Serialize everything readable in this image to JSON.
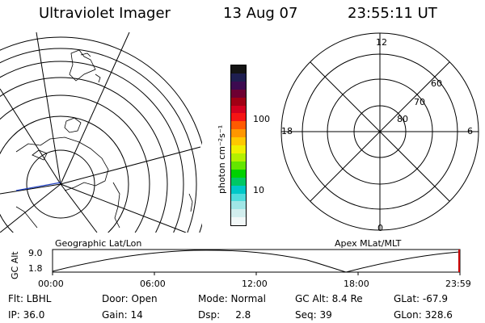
{
  "header": {
    "title": "Ultraviolet Imager",
    "date": "13 Aug 07",
    "time": "23:55:11 UT"
  },
  "left_panel": {
    "label": "Geographic Lat/Lon"
  },
  "right_panel": {
    "label": "Apex MLat/MLT",
    "mlt_labels": {
      "top": "12",
      "left": "18",
      "right": "6",
      "bottom": "0"
    },
    "mlat_labels": [
      "60",
      "70",
      "80"
    ]
  },
  "colorbar": {
    "unit_label": "photon cm⁻²s⁻¹",
    "ticks": [
      "100",
      "10"
    ],
    "colors": [
      "#141414",
      "#1e1e50",
      "#3c0a50",
      "#6e0032",
      "#a00014",
      "#d2001e",
      "#f51414",
      "#ff5a00",
      "#ff9600",
      "#ffc800",
      "#f0f000",
      "#b4f000",
      "#64e600",
      "#00d200",
      "#00c864",
      "#00c8c8",
      "#50dcdc",
      "#a0e6e6",
      "#d2eeee",
      "#f2f8f8"
    ]
  },
  "timeline": {
    "ylabel": "GC Alt",
    "ymax": "9.0",
    "ymin": "1.8",
    "xticks": [
      "00:00",
      "06:00",
      "12:00",
      "18:00",
      "23:59"
    ]
  },
  "status": {
    "filter": "Flt: LBHL",
    "ip": "IP: 36.0",
    "door": "Door: Open",
    "gain": "Gain: 14",
    "mode": "Mode: Normal",
    "dsp": "Dsp:     2.8",
    "gc_alt": "GC Alt: 8.4 Re",
    "seq": "Seq: 39",
    "glat": "GLat: -67.9",
    "glon": "GLon: 328.6"
  }
}
